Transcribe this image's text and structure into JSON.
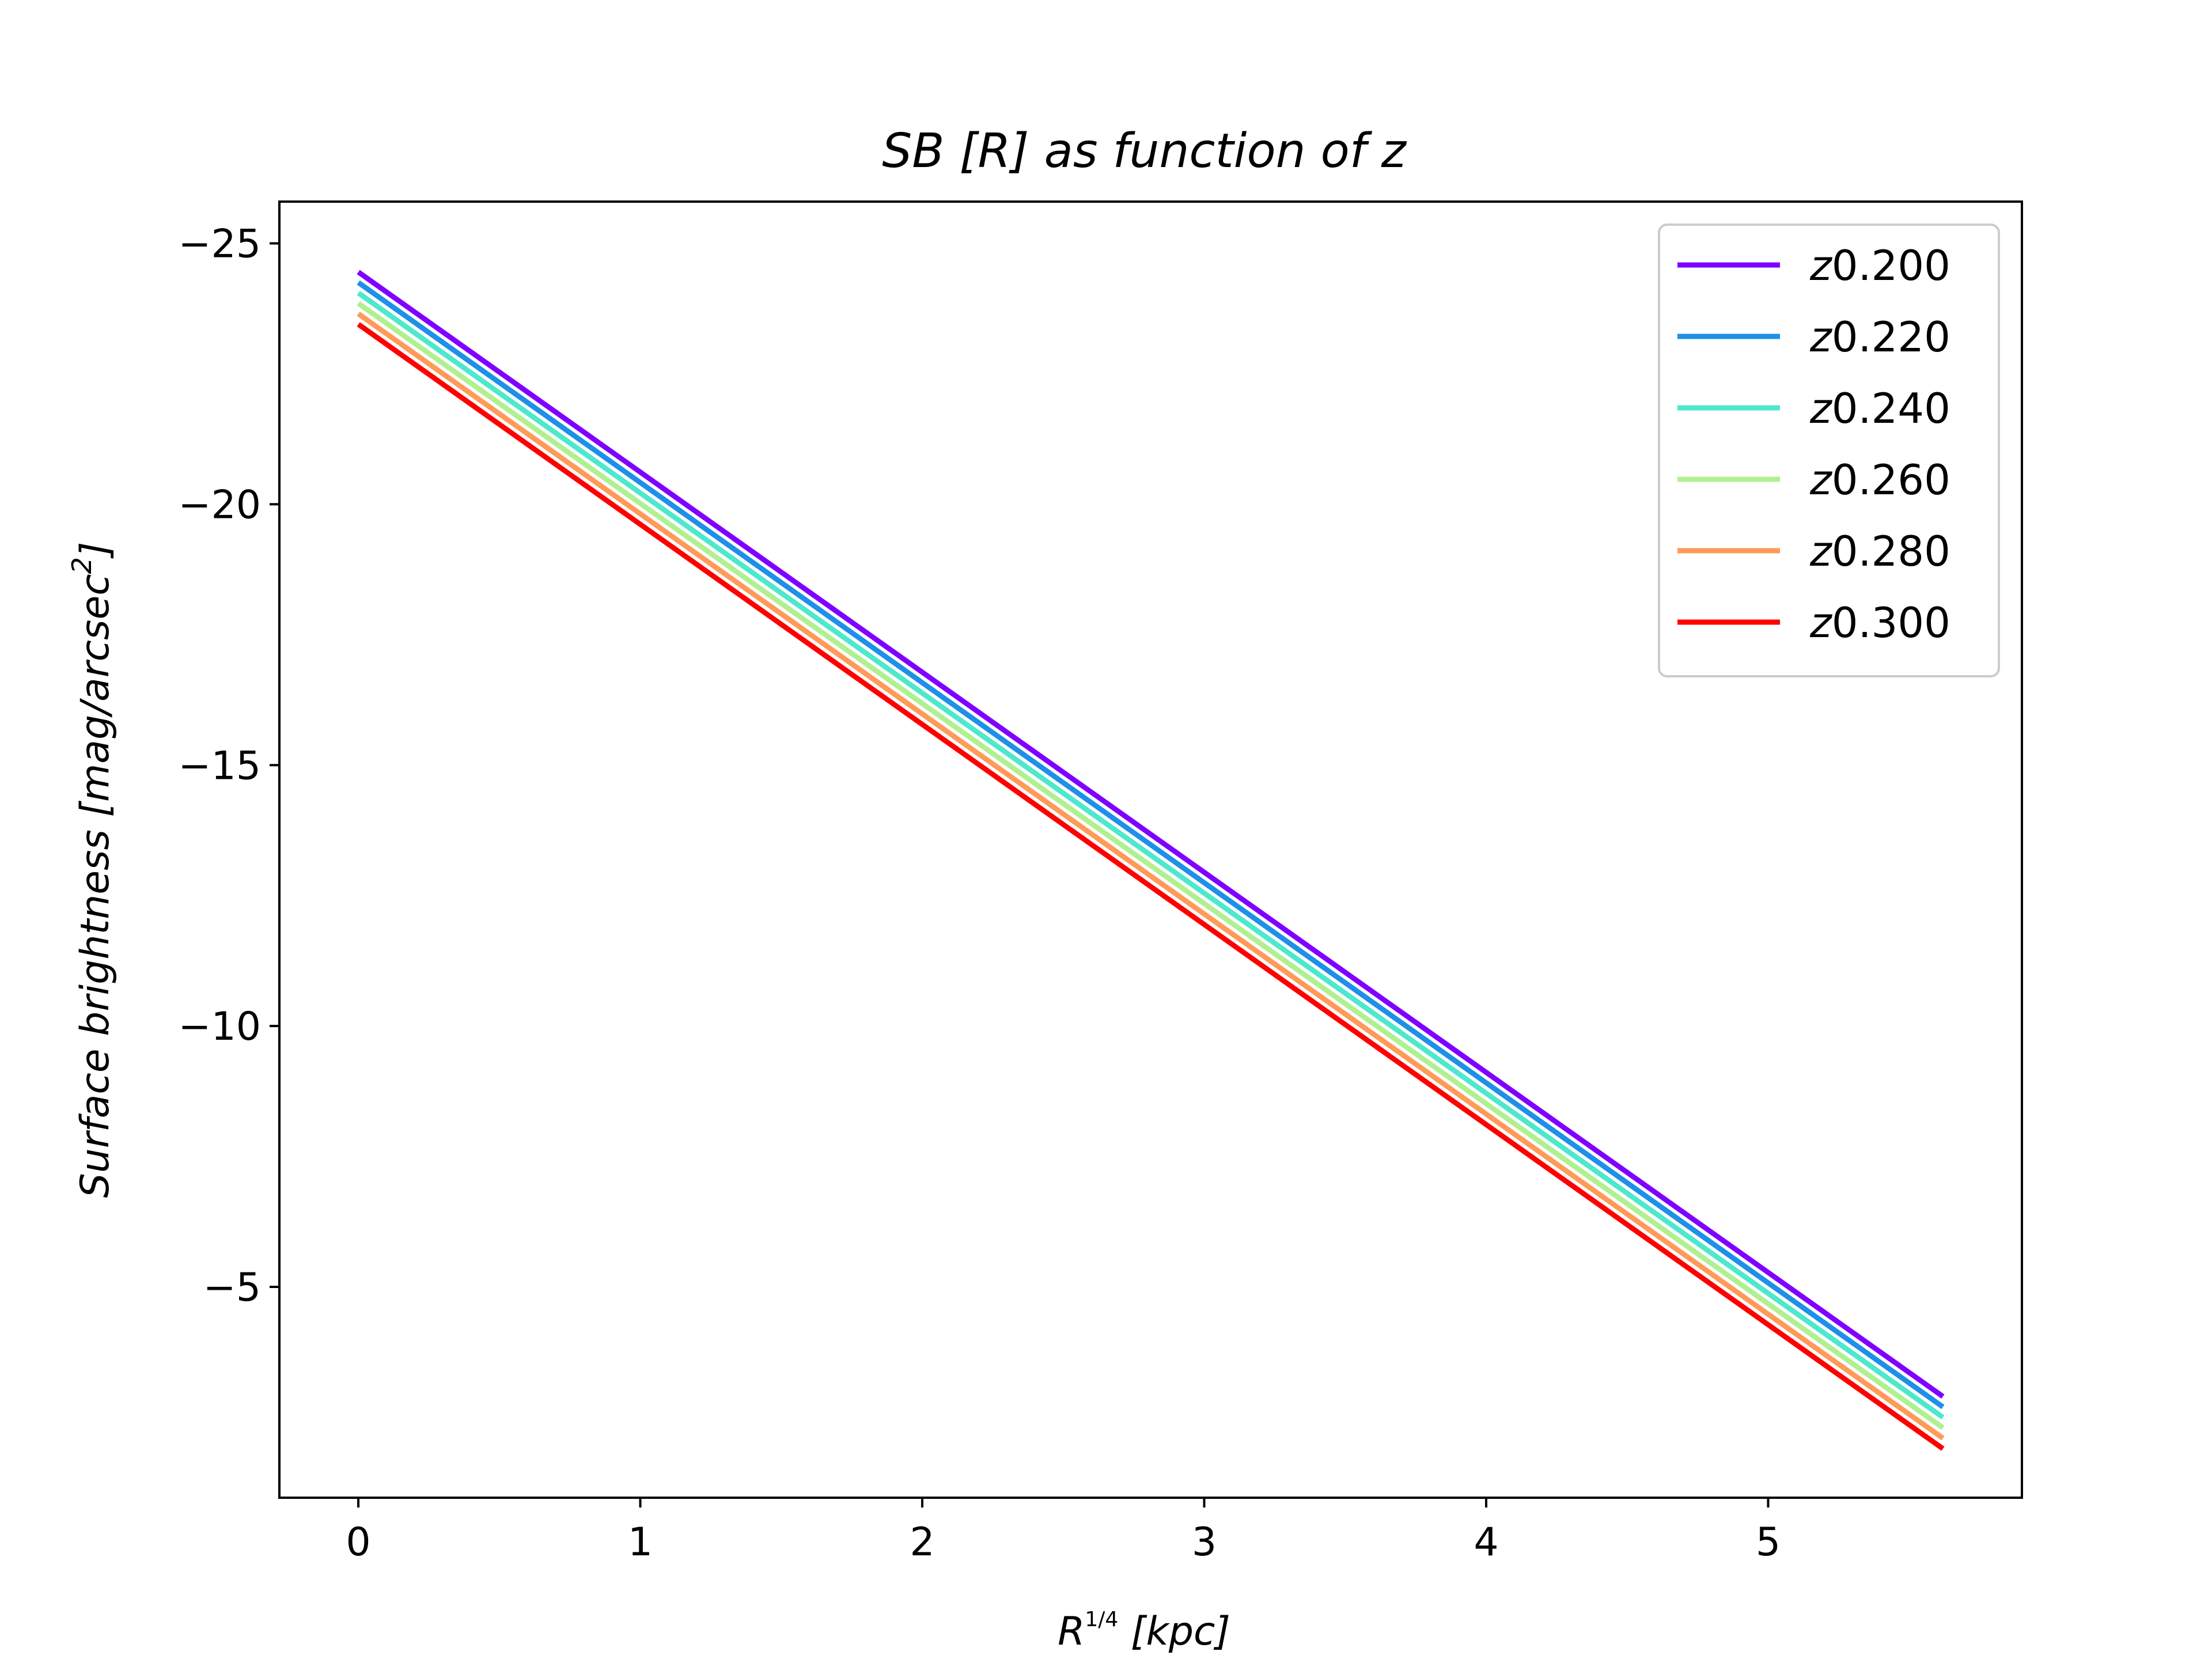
{
  "chart_data": {
    "type": "line",
    "title": "SB [R] as function of z",
    "xlabel": "R^(1/4) [kpc]",
    "xlabel_parts": {
      "base": "R",
      "exp_num": "1",
      "exp_den": "4",
      "rest": " [kpc]"
    },
    "ylabel": "Surface brightness [mag/arcsec^2]",
    "ylabel_parts": {
      "main": "Surface brightness [mag/arcsec",
      "sup": "2",
      "end": "]"
    },
    "xlim": [
      -0.28,
      5.9
    ],
    "ylim": [
      -0.96,
      -25.8
    ],
    "y_inverted": true,
    "xticks": [
      {
        "value": 0,
        "label": "0"
      },
      {
        "value": 1,
        "label": "1"
      },
      {
        "value": 2,
        "label": "2"
      },
      {
        "value": 3,
        "label": "3"
      },
      {
        "value": 4,
        "label": "4"
      },
      {
        "value": 5,
        "label": "5"
      }
    ],
    "yticks": [
      {
        "value": -25,
        "label": "−25"
      },
      {
        "value": -20,
        "label": "−20"
      },
      {
        "value": -15,
        "label": "−15"
      },
      {
        "value": -10,
        "label": "−10"
      },
      {
        "value": -5,
        "label": "−5"
      }
    ],
    "series": [
      {
        "name": "z0.200",
        "label_var": "z",
        "label_num": "0.200",
        "color": "#8000ff",
        "x": [
          0,
          5.62
        ],
        "y": [
          -24.45,
          -2.9
        ]
      },
      {
        "name": "z0.220",
        "label_var": "z",
        "label_num": "0.220",
        "color": "#1e90e8",
        "x": [
          0,
          5.62
        ],
        "y": [
          -24.25,
          -2.7
        ]
      },
      {
        "name": "z0.240",
        "label_var": "z",
        "label_num": "0.240",
        "color": "#4ee8cc",
        "x": [
          0,
          5.62
        ],
        "y": [
          -24.05,
          -2.5
        ]
      },
      {
        "name": "z0.260",
        "label_var": "z",
        "label_num": "0.260",
        "color": "#b0f090",
        "x": [
          0,
          5.62
        ],
        "y": [
          -23.85,
          -2.3
        ]
      },
      {
        "name": "z0.280",
        "label_var": "z",
        "label_num": "0.280",
        "color": "#ff9a58",
        "x": [
          0,
          5.62
        ],
        "y": [
          -23.65,
          -2.1
        ]
      },
      {
        "name": "z0.300",
        "label_var": "z",
        "label_num": "0.300",
        "color": "#ff0000",
        "x": [
          0,
          5.62
        ],
        "y": [
          -23.45,
          -1.9
        ]
      }
    ],
    "legend_position": "top-right",
    "grid": false
  }
}
